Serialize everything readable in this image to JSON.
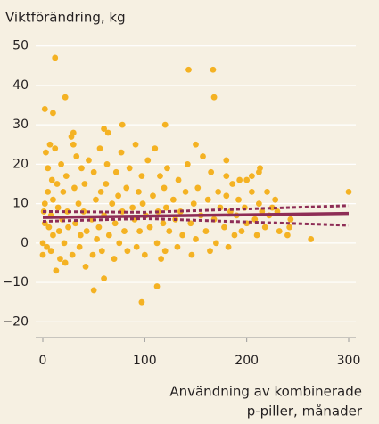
{
  "chart_data": {
    "type": "scatter",
    "title": "Viktförändring, kg",
    "xlabel": [
      "Användning av kombinerade",
      "p-piller, månader"
    ],
    "xlim": [
      -7,
      307
    ],
    "ylim": [
      -24,
      54
    ],
    "xticks": [
      0,
      100,
      200,
      300
    ],
    "yticks": [
      {
        "value": -20,
        "label": "−20"
      },
      {
        "value": -10,
        "label": "−10"
      },
      0,
      10,
      20,
      30,
      40,
      50
    ],
    "grid": true,
    "series": [
      {
        "type": "scatter",
        "color": "#f4b223",
        "x": [
          0,
          0,
          1,
          2,
          2,
          3,
          4,
          5,
          5,
          6,
          7,
          8,
          8,
          9,
          10,
          10,
          12,
          13,
          14,
          15,
          16,
          17,
          18,
          19,
          20,
          21,
          22,
          23,
          24,
          25,
          28,
          29,
          30,
          31,
          32,
          33,
          35,
          36,
          37,
          38,
          40,
          41,
          42,
          43,
          45,
          48,
          49,
          50,
          52,
          53,
          55,
          56,
          57,
          58,
          60,
          62,
          63,
          65,
          68,
          70,
          71,
          72,
          74,
          75,
          77,
          78,
          80,
          82,
          83,
          85,
          88,
          90,
          91,
          92,
          94,
          95,
          97,
          98,
          100,
          101,
          103,
          105,
          108,
          110,
          112,
          113,
          115,
          116,
          118,
          119,
          120,
          121,
          122,
          124,
          128,
          130,
          132,
          133,
          135,
          137,
          140,
          142,
          145,
          146,
          148,
          150,
          152,
          155,
          157,
          160,
          162,
          164,
          165,
          168,
          170,
          172,
          174,
          178,
          180,
          182,
          184,
          186,
          188,
          190,
          192,
          195,
          198,
          200,
          205,
          208,
          210,
          212,
          215,
          218,
          220,
          222,
          225,
          230,
          2,
          12,
          10,
          22,
          143,
          167,
          168,
          97,
          112,
          50,
          60,
          300,
          263,
          240,
          242,
          232,
          243,
          228,
          212,
          213,
          205,
          200,
          180,
          180,
          193,
          150,
          120,
          78,
          64,
          60,
          30
        ],
        "values": [
          0,
          -3,
          8,
          10,
          5,
          23,
          -1,
          13,
          19,
          4,
          25,
          7,
          -2,
          16,
          2,
          11,
          24,
          -7,
          15,
          9,
          3,
          -4,
          20,
          6,
          13,
          0,
          -5,
          17,
          8,
          4,
          27,
          -3,
          25,
          14,
          5,
          22,
          10,
          -1,
          2,
          19,
          8,
          15,
          -6,
          3,
          21,
          6,
          -3,
          18,
          11,
          1,
          4,
          24,
          13,
          -2,
          7,
          15,
          20,
          2,
          10,
          -4,
          5,
          18,
          12,
          0,
          23,
          8,
          3,
          14,
          -2,
          19,
          9,
          6,
          25,
          -1,
          13,
          3,
          17,
          10,
          -3,
          7,
          21,
          4,
          12,
          24,
          0,
          8,
          17,
          -4,
          5,
          14,
          -2,
          9,
          19,
          3,
          11,
          6,
          -1,
          16,
          8,
          2,
          13,
          20,
          5,
          -3,
          10,
          1,
          14,
          7,
          22,
          3,
          11,
          -2,
          18,
          6,
          0,
          13,
          9,
          4,
          12,
          -1,
          8,
          15,
          2,
          7,
          11,
          3,
          9,
          5,
          13,
          6,
          2,
          10,
          8,
          4,
          13,
          7,
          9,
          8,
          34,
          47,
          33,
          37,
          44,
          44,
          37,
          -15,
          -11,
          -12,
          -9,
          13,
          1,
          2,
          4,
          3,
          6,
          11,
          18,
          19,
          17,
          16,
          21,
          17,
          16,
          25,
          30,
          30,
          28,
          29,
          28
        ]
      },
      {
        "type": "line",
        "color": "#8e2d56",
        "dash": false,
        "x": [
          0,
          300
        ],
        "values": [
          6.5,
          7.5
        ]
      },
      {
        "type": "line",
        "color": "#8e2d56",
        "dash": true,
        "x": [
          0,
          100,
          300
        ],
        "values": [
          8,
          7.8,
          9.5
        ]
      },
      {
        "type": "line",
        "color": "#8e2d56",
        "dash": true,
        "x": [
          0,
          100,
          300
        ],
        "values": [
          5.5,
          6.2,
          4.5
        ]
      }
    ]
  }
}
